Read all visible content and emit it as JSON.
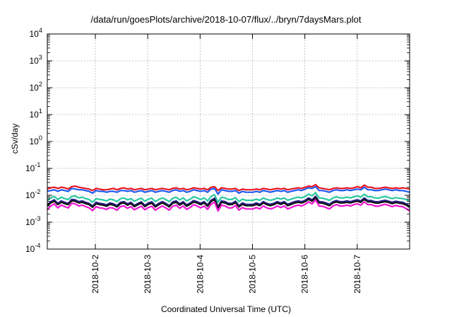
{
  "chart_data": {
    "type": "line",
    "title": "/data/run/goesPlots/archive/2018-10-07/flux/../bryn/7daysMars.plot",
    "xlabel": "Coordinated Universal Time (UTC)",
    "ylabel": "cSv/day",
    "yscale": "log",
    "ylim_exponents": [
      -4,
      4
    ],
    "y_tick_exponents": [
      -4,
      -3,
      -2,
      -1,
      0,
      1,
      2,
      3,
      4
    ],
    "x_range_days": [
      "2018-10-01 02:00",
      "2018-10-08 00:00"
    ],
    "x_ticks": [
      "2018-10-2",
      "2018-10-3",
      "2018-10-4",
      "2018-10-5",
      "2018-10-6",
      "2018-10-7"
    ],
    "grid": true,
    "legend": "none",
    "series": [
      {
        "color": "#e8141e",
        "values": [
          0.017,
          0.019,
          0.02,
          0.018,
          0.02,
          0.019,
          0.017,
          0.021,
          0.022,
          0.02,
          0.019,
          0.018,
          0.017,
          0.015,
          0.018,
          0.017,
          0.016,
          0.016,
          0.017,
          0.018,
          0.016,
          0.018,
          0.019,
          0.017,
          0.018,
          0.016,
          0.017,
          0.018,
          0.016,
          0.017,
          0.018,
          0.016,
          0.017,
          0.018,
          0.017,
          0.016,
          0.018,
          0.019,
          0.017,
          0.018,
          0.016,
          0.017,
          0.019,
          0.018,
          0.017,
          0.018,
          0.016,
          0.02,
          0.021,
          0.015,
          0.019,
          0.018,
          0.017,
          0.017,
          0.018,
          0.015,
          0.017,
          0.016,
          0.016,
          0.016,
          0.017,
          0.016,
          0.018,
          0.017,
          0.016,
          0.017,
          0.018,
          0.017,
          0.018,
          0.016,
          0.017,
          0.018,
          0.019,
          0.018,
          0.02,
          0.022,
          0.021,
          0.025,
          0.019,
          0.018,
          0.017,
          0.016,
          0.018,
          0.019,
          0.018,
          0.018,
          0.019,
          0.018,
          0.019,
          0.021,
          0.019,
          0.024,
          0.02,
          0.02,
          0.018,
          0.018,
          0.019,
          0.02,
          0.019,
          0.018,
          0.019,
          0.018,
          0.019,
          0.018,
          0.017
        ]
      },
      {
        "color": "#1e5af0",
        "values": [
          0.014,
          0.015,
          0.016,
          0.014,
          0.016,
          0.015,
          0.014,
          0.018,
          0.017,
          0.016,
          0.016,
          0.015,
          0.014,
          0.012,
          0.015,
          0.014,
          0.014,
          0.013,
          0.014,
          0.014,
          0.013,
          0.015,
          0.015,
          0.014,
          0.015,
          0.013,
          0.014,
          0.015,
          0.013,
          0.014,
          0.015,
          0.013,
          0.014,
          0.015,
          0.014,
          0.013,
          0.015,
          0.016,
          0.014,
          0.015,
          0.013,
          0.014,
          0.016,
          0.015,
          0.014,
          0.015,
          0.013,
          0.017,
          0.018,
          0.011,
          0.016,
          0.015,
          0.014,
          0.014,
          0.015,
          0.012,
          0.014,
          0.013,
          0.013,
          0.013,
          0.014,
          0.013,
          0.015,
          0.014,
          0.013,
          0.014,
          0.015,
          0.014,
          0.015,
          0.013,
          0.014,
          0.015,
          0.016,
          0.015,
          0.017,
          0.019,
          0.018,
          0.021,
          0.015,
          0.015,
          0.014,
          0.013,
          0.015,
          0.016,
          0.015,
          0.015,
          0.016,
          0.015,
          0.016,
          0.017,
          0.016,
          0.02,
          0.016,
          0.016,
          0.015,
          0.015,
          0.016,
          0.017,
          0.016,
          0.015,
          0.016,
          0.015,
          0.015,
          0.014,
          0.013
        ]
      },
      {
        "color": "#28c8a0",
        "values": [
          0.0065,
          0.008,
          0.009,
          0.007,
          0.0085,
          0.0075,
          0.007,
          0.009,
          0.0095,
          0.008,
          0.0085,
          0.0075,
          0.007,
          0.0055,
          0.0075,
          0.007,
          0.0068,
          0.0062,
          0.0072,
          0.0068,
          0.0058,
          0.0075,
          0.008,
          0.0068,
          0.0075,
          0.006,
          0.007,
          0.0078,
          0.006,
          0.0072,
          0.0078,
          0.0058,
          0.007,
          0.008,
          0.007,
          0.0058,
          0.0078,
          0.0085,
          0.0068,
          0.008,
          0.0062,
          0.0072,
          0.0088,
          0.008,
          0.007,
          0.008,
          0.0062,
          0.009,
          0.0105,
          0.0055,
          0.0085,
          0.008,
          0.007,
          0.007,
          0.0082,
          0.0058,
          0.0072,
          0.0065,
          0.0065,
          0.0065,
          0.0072,
          0.0065,
          0.008,
          0.007,
          0.0065,
          0.007,
          0.008,
          0.0072,
          0.008,
          0.0065,
          0.0072,
          0.008,
          0.0085,
          0.008,
          0.009,
          0.011,
          0.0095,
          0.0125,
          0.008,
          0.0078,
          0.0072,
          0.0065,
          0.008,
          0.0088,
          0.008,
          0.008,
          0.0085,
          0.008,
          0.0088,
          0.0095,
          0.0085,
          0.011,
          0.0088,
          0.0088,
          0.008,
          0.0078,
          0.0085,
          0.009,
          0.0082,
          0.0075,
          0.0082,
          0.0078,
          0.0075,
          0.007,
          0.006
        ]
      },
      {
        "color": "#2a1e8c",
        "values": [
          0.0045,
          0.0058,
          0.0068,
          0.005,
          0.0062,
          0.0055,
          0.005,
          0.007,
          0.0068,
          0.0058,
          0.0062,
          0.0055,
          0.005,
          0.004,
          0.0055,
          0.005,
          0.0048,
          0.0044,
          0.0052,
          0.0048,
          0.0041,
          0.0055,
          0.0058,
          0.0048,
          0.0055,
          0.0042,
          0.005,
          0.0057,
          0.0042,
          0.0052,
          0.0057,
          0.0041,
          0.005,
          0.0058,
          0.005,
          0.0041,
          0.0057,
          0.0062,
          0.0048,
          0.0058,
          0.0044,
          0.0052,
          0.0064,
          0.0058,
          0.005,
          0.0058,
          0.0044,
          0.0065,
          0.0078,
          0.0038,
          0.0062,
          0.0058,
          0.005,
          0.005,
          0.006,
          0.0041,
          0.0052,
          0.0046,
          0.0046,
          0.0046,
          0.0052,
          0.0046,
          0.0058,
          0.005,
          0.0046,
          0.005,
          0.0058,
          0.0052,
          0.0058,
          0.0046,
          0.0052,
          0.0058,
          0.0062,
          0.0058,
          0.0065,
          0.008,
          0.0068,
          0.0092,
          0.0058,
          0.0057,
          0.0052,
          0.0046,
          0.0058,
          0.0064,
          0.0058,
          0.0058,
          0.0062,
          0.0058,
          0.0064,
          0.0068,
          0.0062,
          0.008,
          0.0064,
          0.0064,
          0.0058,
          0.0057,
          0.0062,
          0.0065,
          0.006,
          0.0055,
          0.006,
          0.0057,
          0.0055,
          0.0048,
          0.004
        ]
      },
      {
        "color": "#111111",
        "values": [
          0.004,
          0.0052,
          0.006,
          0.0045,
          0.0055,
          0.0049,
          0.0045,
          0.0062,
          0.006,
          0.0052,
          0.0055,
          0.0049,
          0.0045,
          0.0036,
          0.0049,
          0.0045,
          0.0043,
          0.0039,
          0.0046,
          0.0043,
          0.0037,
          0.0049,
          0.0052,
          0.0043,
          0.0049,
          0.0038,
          0.0045,
          0.0051,
          0.0038,
          0.0046,
          0.0051,
          0.0037,
          0.0045,
          0.0052,
          0.0045,
          0.0037,
          0.0051,
          0.0055,
          0.0043,
          0.0052,
          0.0039,
          0.0046,
          0.0057,
          0.0052,
          0.0045,
          0.0052,
          0.0039,
          0.0058,
          0.007,
          0.0034,
          0.0055,
          0.0052,
          0.0045,
          0.0045,
          0.0054,
          0.0037,
          0.0046,
          0.0041,
          0.0041,
          0.0041,
          0.0046,
          0.0041,
          0.0052,
          0.0045,
          0.0041,
          0.0045,
          0.0052,
          0.0046,
          0.0052,
          0.0041,
          0.0046,
          0.0052,
          0.0055,
          0.0052,
          0.0058,
          0.0071,
          0.006,
          0.0082,
          0.0052,
          0.0051,
          0.0046,
          0.0041,
          0.0052,
          0.0057,
          0.0052,
          0.0052,
          0.0055,
          0.0052,
          0.0057,
          0.006,
          0.0055,
          0.0071,
          0.0057,
          0.0057,
          0.0052,
          0.0051,
          0.0055,
          0.0058,
          0.0054,
          0.0049,
          0.0054,
          0.0051,
          0.0049,
          0.0043,
          0.0036
        ]
      },
      {
        "color": "#f014d2",
        "values": [
          0.003,
          0.004,
          0.0048,
          0.0034,
          0.0043,
          0.0038,
          0.0034,
          0.005,
          0.0048,
          0.004,
          0.0043,
          0.0038,
          0.0034,
          0.0027,
          0.0038,
          0.0034,
          0.0033,
          0.003,
          0.0035,
          0.0033,
          0.0028,
          0.0038,
          0.004,
          0.0033,
          0.0038,
          0.0029,
          0.0034,
          0.0039,
          0.0029,
          0.0035,
          0.0039,
          0.0028,
          0.0034,
          0.004,
          0.0034,
          0.0028,
          0.0039,
          0.0043,
          0.0033,
          0.004,
          0.003,
          0.0035,
          0.0045,
          0.004,
          0.0034,
          0.004,
          0.003,
          0.0046,
          0.0056,
          0.0026,
          0.0043,
          0.004,
          0.0034,
          0.0034,
          0.0042,
          0.0028,
          0.0035,
          0.0031,
          0.0031,
          0.0031,
          0.0035,
          0.0031,
          0.004,
          0.0034,
          0.0031,
          0.0034,
          0.004,
          0.0035,
          0.004,
          0.0031,
          0.0035,
          0.004,
          0.0043,
          0.004,
          0.0046,
          0.0057,
          0.0048,
          0.0067,
          0.004,
          0.0039,
          0.0035,
          0.0031,
          0.004,
          0.0045,
          0.004,
          0.004,
          0.0043,
          0.004,
          0.0045,
          0.0048,
          0.0043,
          0.0057,
          0.0045,
          0.0045,
          0.004,
          0.0039,
          0.0043,
          0.0046,
          0.0042,
          0.0038,
          0.0042,
          0.0039,
          0.0038,
          0.0032,
          0.0026
        ]
      }
    ]
  }
}
